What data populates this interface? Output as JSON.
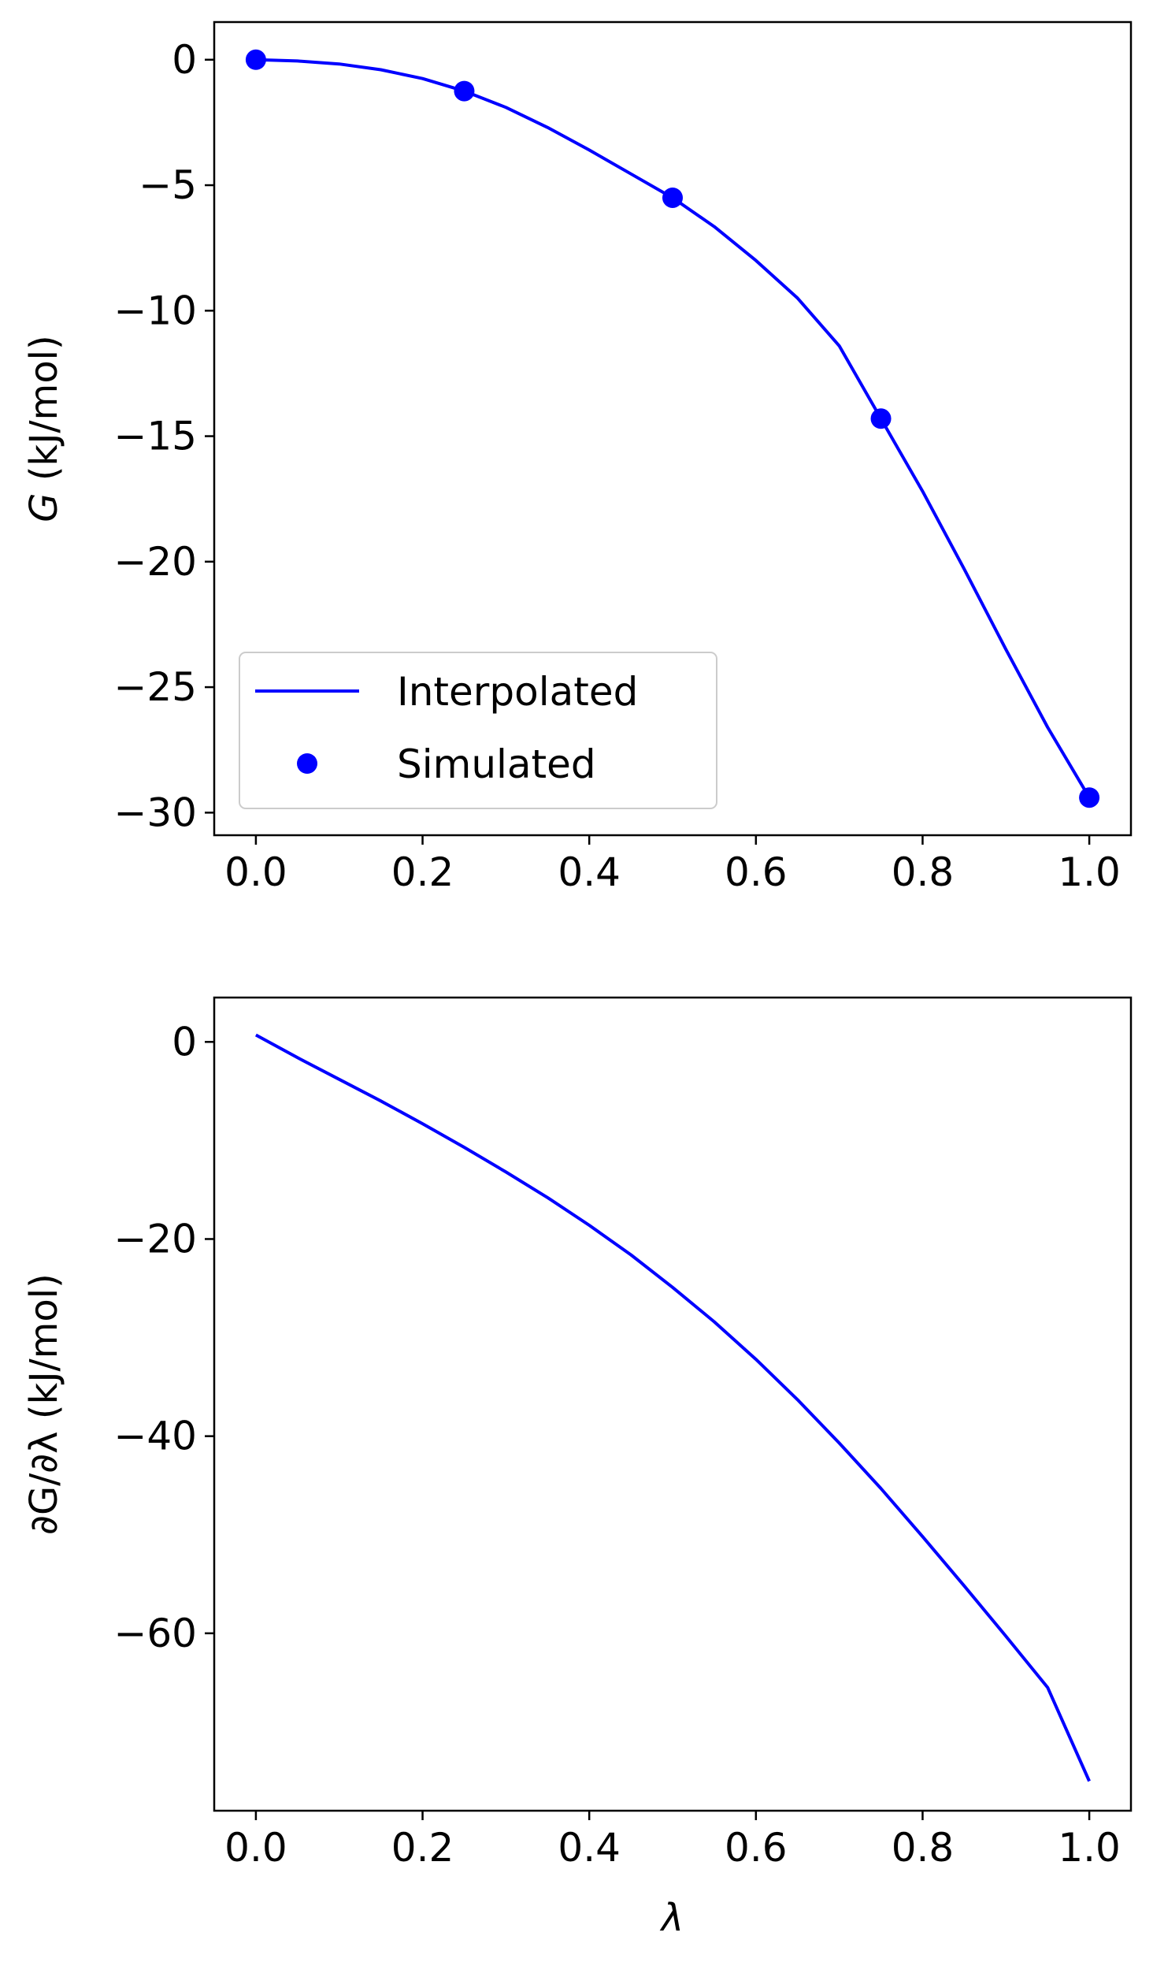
{
  "colors": {
    "series": "#0000ff",
    "axes": "#000000",
    "legend_border": "#cccccc"
  },
  "chart_data": [
    {
      "type": "line",
      "ylabel_symbol": "G",
      "ylabel_unit": " (kJ/mol)",
      "xlabel": "",
      "xlim": [
        -0.05,
        1.05
      ],
      "ylim": [
        -30.9,
        1.5
      ],
      "xticks": [
        0.0,
        0.2,
        0.4,
        0.6,
        0.8,
        1.0
      ],
      "xtick_labels": [
        "0.0",
        "0.2",
        "0.4",
        "0.6",
        "0.8",
        "1.0"
      ],
      "yticks": [
        0,
        -5,
        -10,
        -15,
        -20,
        -25,
        -30
      ],
      "ytick_labels": [
        "0",
        "−5",
        "−10",
        "−15",
        "−20",
        "−25",
        "−30"
      ],
      "grid": false,
      "legend_position": "lower-left",
      "series": [
        {
          "name": "Interpolated",
          "kind": "line",
          "x": [
            0.0,
            0.05,
            0.1,
            0.15,
            0.2,
            0.25,
            0.3,
            0.35,
            0.4,
            0.45,
            0.5,
            0.55,
            0.6,
            0.65,
            0.7,
            0.75,
            0.8,
            0.85,
            0.9,
            0.95,
            1.0
          ],
          "y": [
            0.0,
            -0.05,
            -0.17,
            -0.4,
            -0.75,
            -1.25,
            -1.9,
            -2.7,
            -3.6,
            -4.55,
            -5.5,
            -6.65,
            -8.0,
            -9.5,
            -11.4,
            -14.3,
            -17.2,
            -20.3,
            -23.5,
            -26.6,
            -29.4
          ]
        },
        {
          "name": "Simulated",
          "kind": "points",
          "x": [
            0.0,
            0.25,
            0.5,
            0.75,
            1.0
          ],
          "y": [
            0.0,
            -1.25,
            -5.5,
            -14.3,
            -29.4
          ]
        }
      ]
    },
    {
      "type": "line",
      "ylabel": "∂G/∂λ (kJ/mol)",
      "xlabel": "λ",
      "xlim": [
        -0.05,
        1.05
      ],
      "ylim": [
        -78,
        4.5
      ],
      "xticks": [
        0.0,
        0.2,
        0.4,
        0.6,
        0.8,
        1.0
      ],
      "xtick_labels": [
        "0.0",
        "0.2",
        "0.4",
        "0.6",
        "0.8",
        "1.0"
      ],
      "yticks": [
        0,
        -20,
        -40,
        -60
      ],
      "ytick_labels": [
        "0",
        "−20",
        "−40",
        "−60"
      ],
      "grid": false,
      "series": [
        {
          "kind": "line",
          "x": [
            0.0,
            0.05,
            0.1,
            0.15,
            0.2,
            0.25,
            0.3,
            0.35,
            0.4,
            0.45,
            0.5,
            0.55,
            0.6,
            0.65,
            0.7,
            0.75,
            0.8,
            0.85,
            0.9,
            0.95,
            1.0
          ],
          "y": [
            0.7,
            -1.6,
            -3.8,
            -6.0,
            -8.3,
            -10.7,
            -13.2,
            -15.8,
            -18.6,
            -21.6,
            -24.9,
            -28.4,
            -32.2,
            -36.3,
            -40.7,
            -45.3,
            -50.2,
            -55.2,
            -60.3,
            -65.5,
            -75.0
          ]
        }
      ]
    }
  ]
}
